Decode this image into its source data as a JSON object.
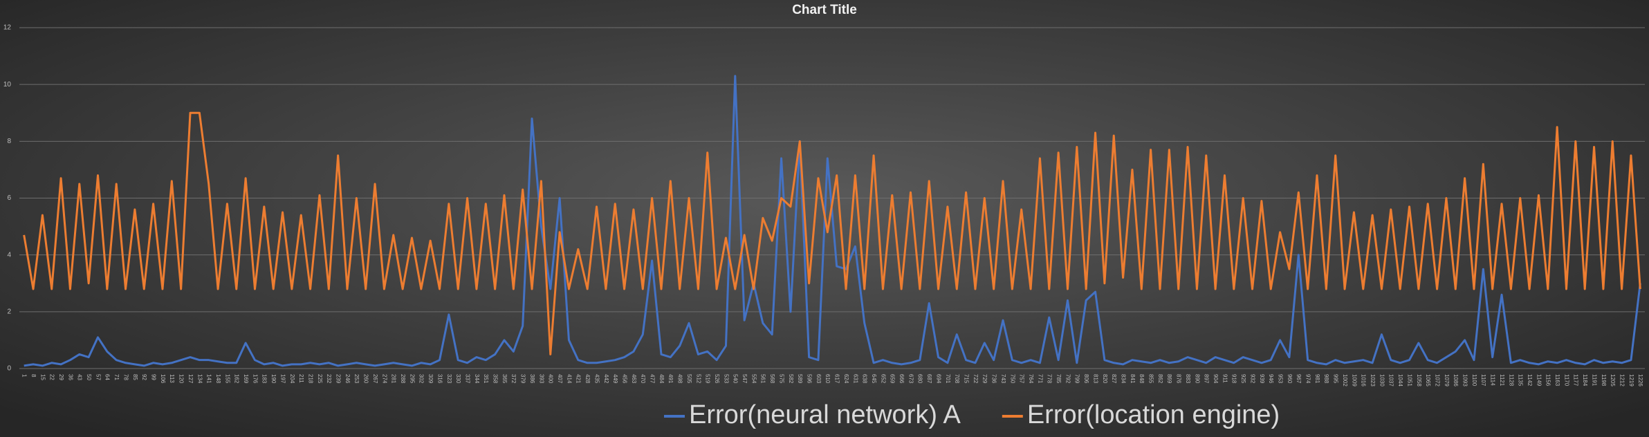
{
  "chart_data": {
    "type": "line",
    "title": "Chart Title",
    "categories": [
      1,
      8,
      15,
      22,
      29,
      36,
      43,
      50,
      57,
      64,
      71,
      78,
      85,
      92,
      99,
      106,
      113,
      120,
      127,
      134,
      141,
      148,
      155,
      162,
      169,
      176,
      183,
      190,
      197,
      204,
      211,
      218,
      225,
      232,
      239,
      246,
      253,
      260,
      267,
      274,
      281,
      288,
      295,
      302,
      309,
      316,
      323,
      330,
      337,
      344,
      351,
      358,
      365,
      372,
      379,
      386,
      393,
      400,
      407,
      414,
      421,
      428,
      435,
      442,
      449,
      456,
      463,
      470,
      477,
      484,
      491,
      498,
      505,
      512,
      519,
      526,
      533,
      540,
      547,
      554,
      561,
      568,
      575,
      582,
      589,
      596,
      603,
      610,
      617,
      624,
      631,
      638,
      645,
      652,
      659,
      666,
      673,
      680,
      687,
      694,
      701,
      708,
      715,
      722,
      729,
      736,
      743,
      750,
      757,
      764,
      771,
      778,
      785,
      792,
      799,
      806,
      813,
      820,
      827,
      834,
      841,
      848,
      855,
      862,
      869,
      876,
      883,
      890,
      897,
      904,
      911,
      918,
      925,
      932,
      939,
      946,
      953,
      960,
      967,
      974,
      981,
      988,
      995,
      1002,
      1009,
      1016,
      1023,
      1030,
      1037,
      1044,
      1051,
      1058,
      1065,
      1072,
      1079,
      1086,
      1093,
      1100,
      1107,
      1114,
      1121,
      1128,
      1135,
      1142,
      1149,
      1156,
      1163,
      1170,
      1177,
      1184,
      1191,
      1198,
      1205,
      1212,
      1219,
      1226
    ],
    "series": [
      {
        "name": "Error(neural network) A",
        "color": "#4472c4",
        "values": [
          0.1,
          0.15,
          0.1,
          0.2,
          0.15,
          0.3,
          0.5,
          0.4,
          1.1,
          0.6,
          0.3,
          0.2,
          0.15,
          0.1,
          0.2,
          0.15,
          0.2,
          0.3,
          0.4,
          0.3,
          0.3,
          0.25,
          0.2,
          0.2,
          0.9,
          0.3,
          0.15,
          0.2,
          0.1,
          0.15,
          0.15,
          0.2,
          0.15,
          0.2,
          0.1,
          0.15,
          0.2,
          0.15,
          0.1,
          0.15,
          0.2,
          0.15,
          0.1,
          0.2,
          0.15,
          0.3,
          1.9,
          0.3,
          0.2,
          0.4,
          0.3,
          0.5,
          1.0,
          0.6,
          1.5,
          8.8,
          5.0,
          2.8,
          6.0,
          1.0,
          0.3,
          0.2,
          0.2,
          0.25,
          0.3,
          0.4,
          0.6,
          1.2,
          3.8,
          0.5,
          0.4,
          0.8,
          1.6,
          0.5,
          0.6,
          0.3,
          0.8,
          10.3,
          1.7,
          3.0,
          1.6,
          1.2,
          7.4,
          2.0,
          8.0,
          0.4,
          0.3,
          7.4,
          3.6,
          3.5,
          4.3,
          1.6,
          0.2,
          0.3,
          0.2,
          0.15,
          0.2,
          0.3,
          2.3,
          0.4,
          0.2,
          1.2,
          0.3,
          0.2,
          0.9,
          0.3,
          1.7,
          0.3,
          0.2,
          0.3,
          0.2,
          1.8,
          0.3,
          2.4,
          0.2,
          2.4,
          2.7,
          0.3,
          0.2,
          0.15,
          0.3,
          0.25,
          0.2,
          0.3,
          0.2,
          0.25,
          0.4,
          0.3,
          0.2,
          0.4,
          0.3,
          0.2,
          0.4,
          0.3,
          0.2,
          0.3,
          1.0,
          0.4,
          4.0,
          0.3,
          0.2,
          0.15,
          0.3,
          0.2,
          0.25,
          0.3,
          0.2,
          1.2,
          0.3,
          0.2,
          0.3,
          0.9,
          0.3,
          0.2,
          0.4,
          0.6,
          1.0,
          0.3,
          3.5,
          0.4,
          2.6,
          0.2,
          0.3,
          0.2,
          0.15,
          0.25,
          0.2,
          0.3,
          0.2,
          0.15,
          0.3,
          0.2,
          0.25,
          0.2,
          0.3,
          3.0
        ]
      },
      {
        "name": "Error(location engine)",
        "color": "#ed7d31",
        "values": [
          4.7,
          2.8,
          5.4,
          2.8,
          6.7,
          2.8,
          6.5,
          3.0,
          6.8,
          2.8,
          6.5,
          2.8,
          5.6,
          2.8,
          5.8,
          2.8,
          6.6,
          2.8,
          9.0,
          9.0,
          6.5,
          2.8,
          5.8,
          2.8,
          6.7,
          2.8,
          5.7,
          2.8,
          5.5,
          2.8,
          5.4,
          2.8,
          6.1,
          2.8,
          7.5,
          2.8,
          6.0,
          2.8,
          6.5,
          2.8,
          4.7,
          2.8,
          4.6,
          2.8,
          4.5,
          2.8,
          5.8,
          2.8,
          6.0,
          2.8,
          5.8,
          2.8,
          6.1,
          2.8,
          6.3,
          2.8,
          6.6,
          0.5,
          4.8,
          2.8,
          4.2,
          2.8,
          5.7,
          2.8,
          5.8,
          2.8,
          5.6,
          2.8,
          6.0,
          2.8,
          6.6,
          2.8,
          6.0,
          2.8,
          7.6,
          2.8,
          4.6,
          2.8,
          4.7,
          2.8,
          5.3,
          4.5,
          6.0,
          5.7,
          8.0,
          3.0,
          6.7,
          4.8,
          6.8,
          2.8,
          6.8,
          2.8,
          7.5,
          2.8,
          6.1,
          2.8,
          6.2,
          2.8,
          6.6,
          2.8,
          5.7,
          2.8,
          6.2,
          2.8,
          6.0,
          2.8,
          6.6,
          2.8,
          5.6,
          2.8,
          7.4,
          2.8,
          7.6,
          2.8,
          7.8,
          2.8,
          8.3,
          3.0,
          8.2,
          3.2,
          7.0,
          2.8,
          7.7,
          2.8,
          7.7,
          2.8,
          7.8,
          2.8,
          7.5,
          2.8,
          6.8,
          2.8,
          6.0,
          2.8,
          5.9,
          2.8,
          4.8,
          3.5,
          6.2,
          2.8,
          6.8,
          2.8,
          7.5,
          2.8,
          5.5,
          2.8,
          5.4,
          2.8,
          5.6,
          2.8,
          5.7,
          2.8,
          5.8,
          2.8,
          6.0,
          2.8,
          6.7,
          2.8,
          7.2,
          2.8,
          5.8,
          2.8,
          6.0,
          2.8,
          6.1,
          2.8,
          8.5,
          2.8,
          8.0,
          2.8,
          7.8,
          2.8,
          8.0,
          2.8,
          7.5,
          2.8
        ]
      }
    ],
    "ylim": [
      0,
      12
    ],
    "yticks": [
      0,
      2,
      4,
      6,
      8,
      10,
      12
    ],
    "grid": true,
    "legend": "bottom"
  }
}
